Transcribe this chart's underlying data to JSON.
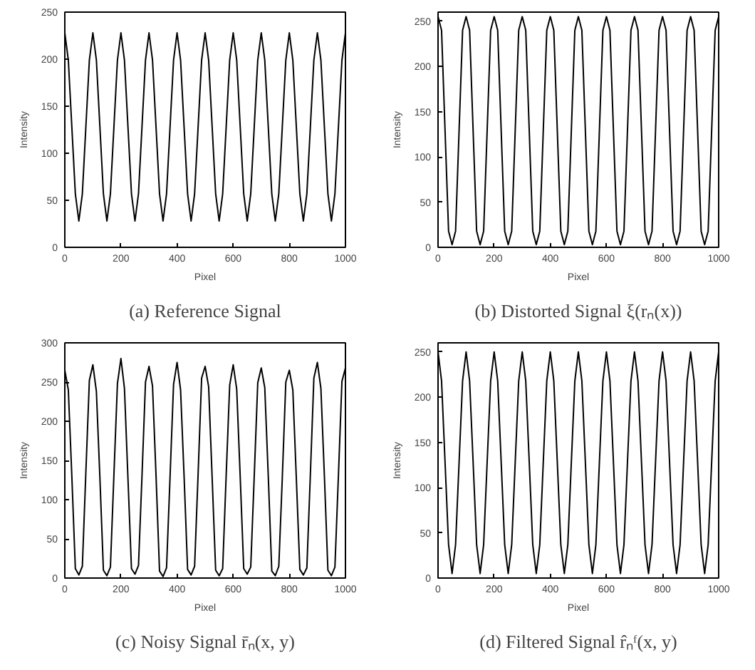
{
  "chart_data": [
    {
      "type": "line",
      "title": "(a) Reference Signal",
      "xlabel": "Pixel",
      "ylabel": "Intensity",
      "xlim": [
        0,
        1000
      ],
      "ylim": [
        0,
        250
      ],
      "xticks": [
        0,
        200,
        400,
        600,
        800,
        1000
      ],
      "yticks": [
        0,
        50,
        100,
        150,
        200,
        250
      ],
      "grid": false,
      "line_style": "solid",
      "x": [
        0,
        12.5,
        25,
        37.5,
        50,
        62.5,
        75,
        87.5,
        100,
        112.5,
        125,
        137.5,
        150,
        162.5,
        175,
        187.5,
        200,
        212.5,
        225,
        237.5,
        250,
        262.5,
        275,
        287.5,
        300,
        312.5,
        325,
        337.5,
        350,
        362.5,
        375,
        387.5,
        400,
        412.5,
        425,
        437.5,
        450,
        462.5,
        475,
        487.5,
        500,
        512.5,
        525,
        537.5,
        550,
        562.5,
        575,
        587.5,
        600,
        612.5,
        625,
        637.5,
        650,
        662.5,
        675,
        687.5,
        700,
        712.5,
        725,
        737.5,
        750,
        762.5,
        775,
        787.5,
        800,
        812.5,
        825,
        837.5,
        850,
        862.5,
        875,
        887.5,
        900,
        912.5,
        925,
        937.5,
        950,
        962.5,
        975,
        987.5,
        1000
      ],
      "series": [
        {
          "color": "#000000",
          "values": [
            228,
            199,
            128,
            57,
            28,
            57,
            128,
            199,
            228,
            199,
            128,
            57,
            28,
            57,
            128,
            199,
            228,
            199,
            128,
            57,
            28,
            57,
            128,
            199,
            228,
            199,
            128,
            57,
            28,
            57,
            128,
            199,
            228,
            199,
            128,
            57,
            28,
            57,
            128,
            199,
            228,
            199,
            128,
            57,
            28,
            57,
            128,
            199,
            228,
            199,
            128,
            57,
            28,
            57,
            128,
            199,
            228,
            199,
            128,
            57,
            28,
            57,
            128,
            199,
            228,
            199,
            128,
            57,
            28,
            57,
            128,
            199,
            228,
            199,
            128,
            57,
            28,
            57,
            128,
            199,
            228
          ]
        }
      ]
    },
    {
      "type": "line",
      "title": "(b) Distorted Signal ξ(rₙ(x))",
      "xlabel": "Pixel",
      "ylabel": "Intensity",
      "xlim": [
        0,
        1000
      ],
      "ylim": [
        0,
        260
      ],
      "xticks": [
        0,
        200,
        400,
        600,
        800,
        1000
      ],
      "yticks": [
        0,
        50,
        100,
        150,
        200,
        250
      ],
      "grid": false,
      "line_style": "solid",
      "x": [
        0,
        12.5,
        25,
        37.5,
        50,
        62.5,
        75,
        87.5,
        100,
        112.5,
        125,
        137.5,
        150,
        162.5,
        175,
        187.5,
        200,
        212.5,
        225,
        237.5,
        250,
        262.5,
        275,
        287.5,
        300,
        312.5,
        325,
        337.5,
        350,
        362.5,
        375,
        387.5,
        400,
        412.5,
        425,
        437.5,
        450,
        462.5,
        475,
        487.5,
        500,
        512.5,
        525,
        537.5,
        550,
        562.5,
        575,
        587.5,
        600,
        612.5,
        625,
        637.5,
        650,
        662.5,
        675,
        687.5,
        700,
        712.5,
        725,
        737.5,
        750,
        762.5,
        775,
        787.5,
        800,
        812.5,
        825,
        837.5,
        850,
        862.5,
        875,
        887.5,
        900,
        912.5,
        925,
        937.5,
        950,
        962.5,
        975,
        987.5,
        1000
      ],
      "series": [
        {
          "color": "#000000",
          "values": [
            255,
            240,
            129,
            18,
            3,
            18,
            129,
            240,
            255,
            240,
            129,
            18,
            3,
            18,
            129,
            240,
            255,
            240,
            129,
            18,
            3,
            18,
            129,
            240,
            255,
            240,
            129,
            18,
            3,
            18,
            129,
            240,
            255,
            240,
            129,
            18,
            3,
            18,
            129,
            240,
            255,
            240,
            129,
            18,
            3,
            18,
            129,
            240,
            255,
            240,
            129,
            18,
            3,
            18,
            129,
            240,
            255,
            240,
            129,
            18,
            3,
            18,
            129,
            240,
            255,
            240,
            129,
            18,
            3,
            18,
            129,
            240,
            255,
            240,
            129,
            18,
            3,
            18,
            129,
            240,
            255
          ]
        }
      ]
    },
    {
      "type": "line",
      "title": "(c) Noisy Signal r̄ₙ(x, y)",
      "xlabel": "Pixel",
      "ylabel": "Intensity",
      "xlim": [
        0,
        1000
      ],
      "ylim": [
        0,
        300
      ],
      "xticks": [
        0,
        200,
        400,
        600,
        800,
        1000
      ],
      "yticks": [
        0,
        50,
        100,
        150,
        200,
        250,
        300
      ],
      "grid": false,
      "line_style": "solid",
      "x": [
        0,
        12.5,
        25,
        37.5,
        50,
        62.5,
        75,
        87.5,
        100,
        112.5,
        125,
        137.5,
        150,
        162.5,
        175,
        187.5,
        200,
        212.5,
        225,
        237.5,
        250,
        262.5,
        275,
        287.5,
        300,
        312.5,
        325,
        337.5,
        350,
        362.5,
        375,
        387.5,
        400,
        412.5,
        425,
        437.5,
        450,
        462.5,
        475,
        487.5,
        500,
        512.5,
        525,
        537.5,
        550,
        562.5,
        575,
        587.5,
        600,
        612.5,
        625,
        637.5,
        650,
        662.5,
        675,
        687.5,
        700,
        712.5,
        725,
        737.5,
        750,
        762.5,
        775,
        787.5,
        800,
        812.5,
        825,
        837.5,
        850,
        862.5,
        875,
        887.5,
        900,
        912.5,
        925,
        937.5,
        950,
        962.5,
        975,
        987.5,
        1000
      ],
      "series": [
        {
          "color": "#000000",
          "values": [
            265,
            240,
            130,
            12,
            4,
            15,
            135,
            252,
            272,
            238,
            128,
            10,
            3,
            14,
            132,
            248,
            280,
            242,
            127,
            12,
            5,
            16,
            130,
            250,
            270,
            245,
            131,
            9,
            2,
            13,
            129,
            247,
            275,
            240,
            130,
            11,
            4,
            15,
            133,
            255,
            270,
            244,
            128,
            10,
            3,
            12,
            131,
            246,
            272,
            241,
            129,
            12,
            5,
            14,
            130,
            249,
            268,
            243,
            130,
            9,
            3,
            15,
            128,
            250,
            265,
            240,
            127,
            11,
            4,
            13,
            132,
            255,
            275,
            242,
            130,
            10,
            3,
            14,
            131,
            251,
            268
          ]
        }
      ]
    },
    {
      "type": "line",
      "title": "(d) Filtered Signal r̂ₙᶠ(x, y)",
      "xlabel": "Pixel",
      "ylabel": "Intensity",
      "xlim": [
        0,
        1000
      ],
      "ylim": [
        0,
        260
      ],
      "xticks": [
        0,
        200,
        400,
        600,
        800,
        1000
      ],
      "yticks": [
        0,
        50,
        100,
        150,
        200,
        250
      ],
      "grid": false,
      "line_style": "solid",
      "x": [
        0,
        12.5,
        25,
        37.5,
        50,
        62.5,
        75,
        87.5,
        100,
        112.5,
        125,
        137.5,
        150,
        162.5,
        175,
        187.5,
        200,
        212.5,
        225,
        237.5,
        250,
        262.5,
        275,
        287.5,
        300,
        312.5,
        325,
        337.5,
        350,
        362.5,
        375,
        387.5,
        400,
        412.5,
        425,
        437.5,
        450,
        462.5,
        475,
        487.5,
        500,
        512.5,
        525,
        537.5,
        550,
        562.5,
        575,
        587.5,
        600,
        612.5,
        625,
        637.5,
        650,
        662.5,
        675,
        687.5,
        700,
        712.5,
        725,
        737.5,
        750,
        762.5,
        775,
        787.5,
        800,
        812.5,
        825,
        837.5,
        850,
        862.5,
        875,
        887.5,
        900,
        912.5,
        925,
        937.5,
        950,
        962.5,
        975,
        987.5,
        1000
      ],
      "series": [
        {
          "color": "#000000",
          "values": [
            250,
            218,
            128,
            37,
            5,
            37,
            128,
            218,
            250,
            218,
            128,
            37,
            5,
            37,
            128,
            218,
            250,
            218,
            128,
            37,
            5,
            37,
            128,
            218,
            250,
            218,
            128,
            37,
            5,
            37,
            128,
            218,
            250,
            218,
            128,
            37,
            5,
            37,
            128,
            218,
            250,
            218,
            128,
            37,
            5,
            37,
            128,
            218,
            250,
            218,
            128,
            37,
            5,
            37,
            128,
            218,
            250,
            218,
            128,
            37,
            5,
            37,
            128,
            218,
            250,
            218,
            128,
            37,
            5,
            37,
            128,
            218,
            250,
            218,
            128,
            37,
            5,
            37,
            128,
            218,
            250
          ]
        }
      ]
    }
  ]
}
